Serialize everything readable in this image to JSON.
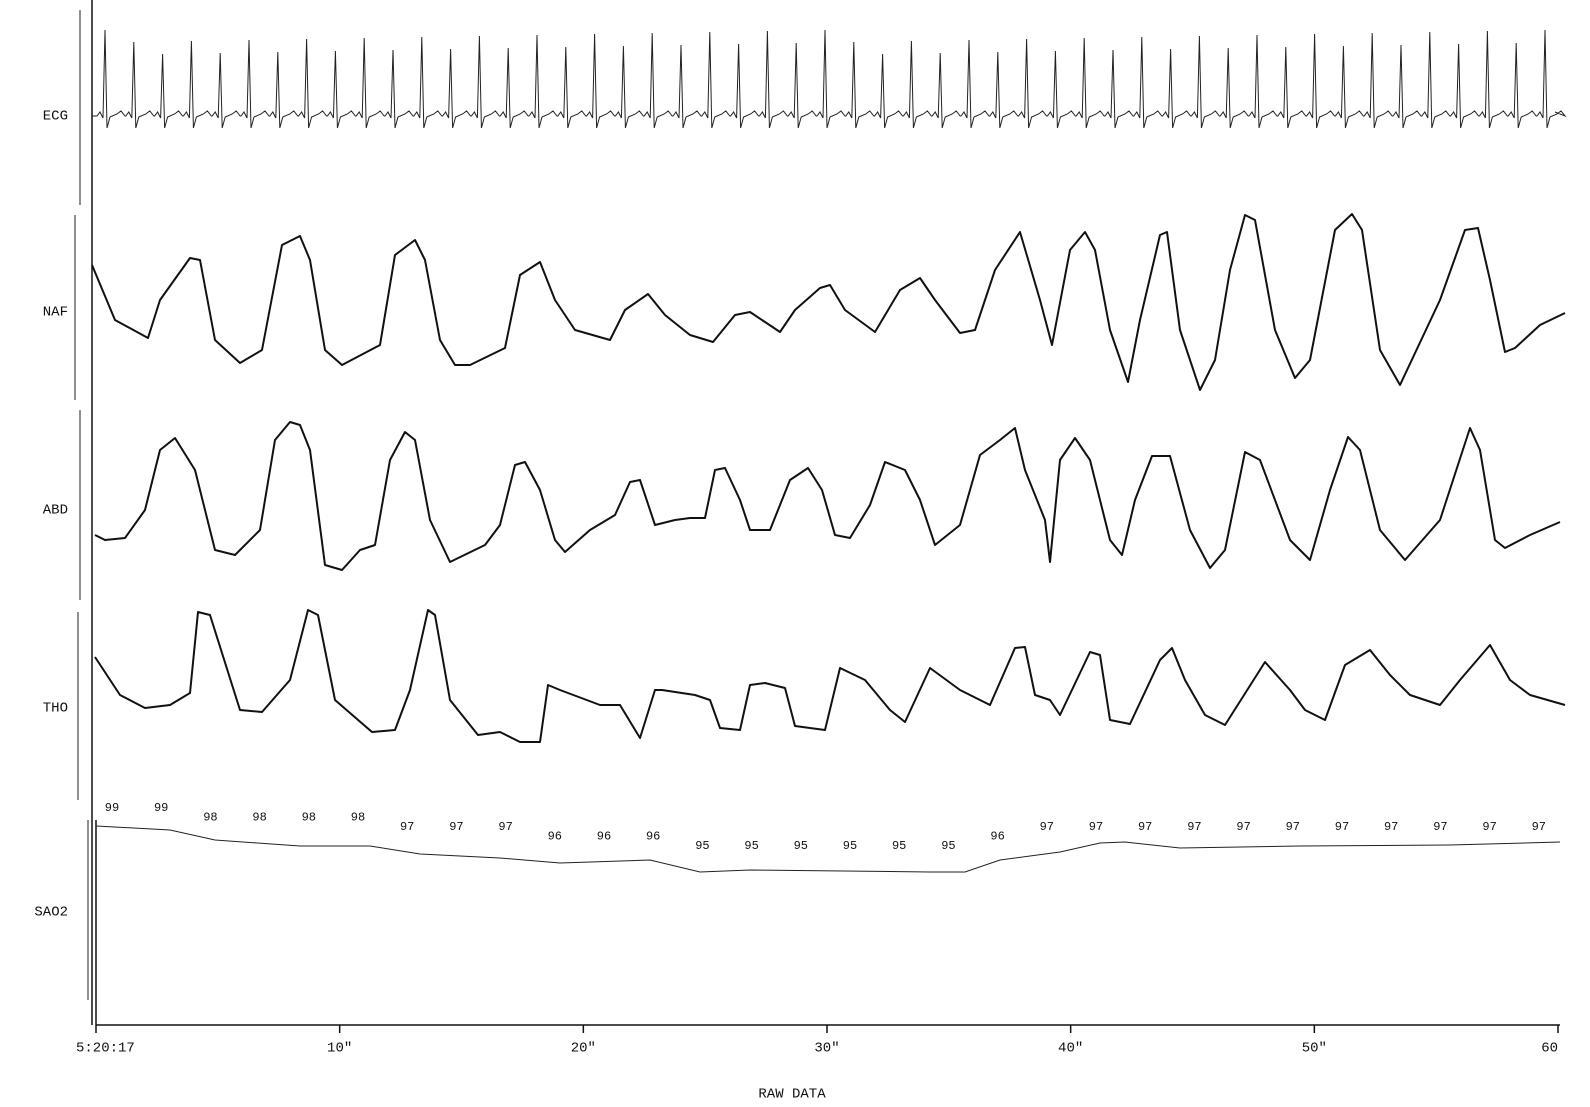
{
  "chart_data": {
    "type": "polygraph",
    "channels": [
      "ECG",
      "NAF",
      "ABD",
      "THO",
      "SAO2"
    ],
    "xlabel": "RAW DATA",
    "xlim": [
      0,
      60
    ],
    "xticks": [
      {
        "value": 0,
        "label": "5:20:17"
      },
      {
        "value": 10,
        "label": "10\""
      },
      {
        "value": 20,
        "label": "20\""
      },
      {
        "value": 30,
        "label": "30\""
      },
      {
        "value": 40,
        "label": "40\""
      },
      {
        "value": 50,
        "label": "50\""
      },
      60
    ],
    "sao2_values": [
      99,
      99,
      98,
      98,
      98,
      98,
      97,
      97,
      97,
      96,
      96,
      96,
      95,
      95,
      95,
      95,
      95,
      95,
      96,
      97,
      97,
      97,
      97,
      97,
      97,
      97,
      97,
      97,
      97,
      97
    ]
  }
}
